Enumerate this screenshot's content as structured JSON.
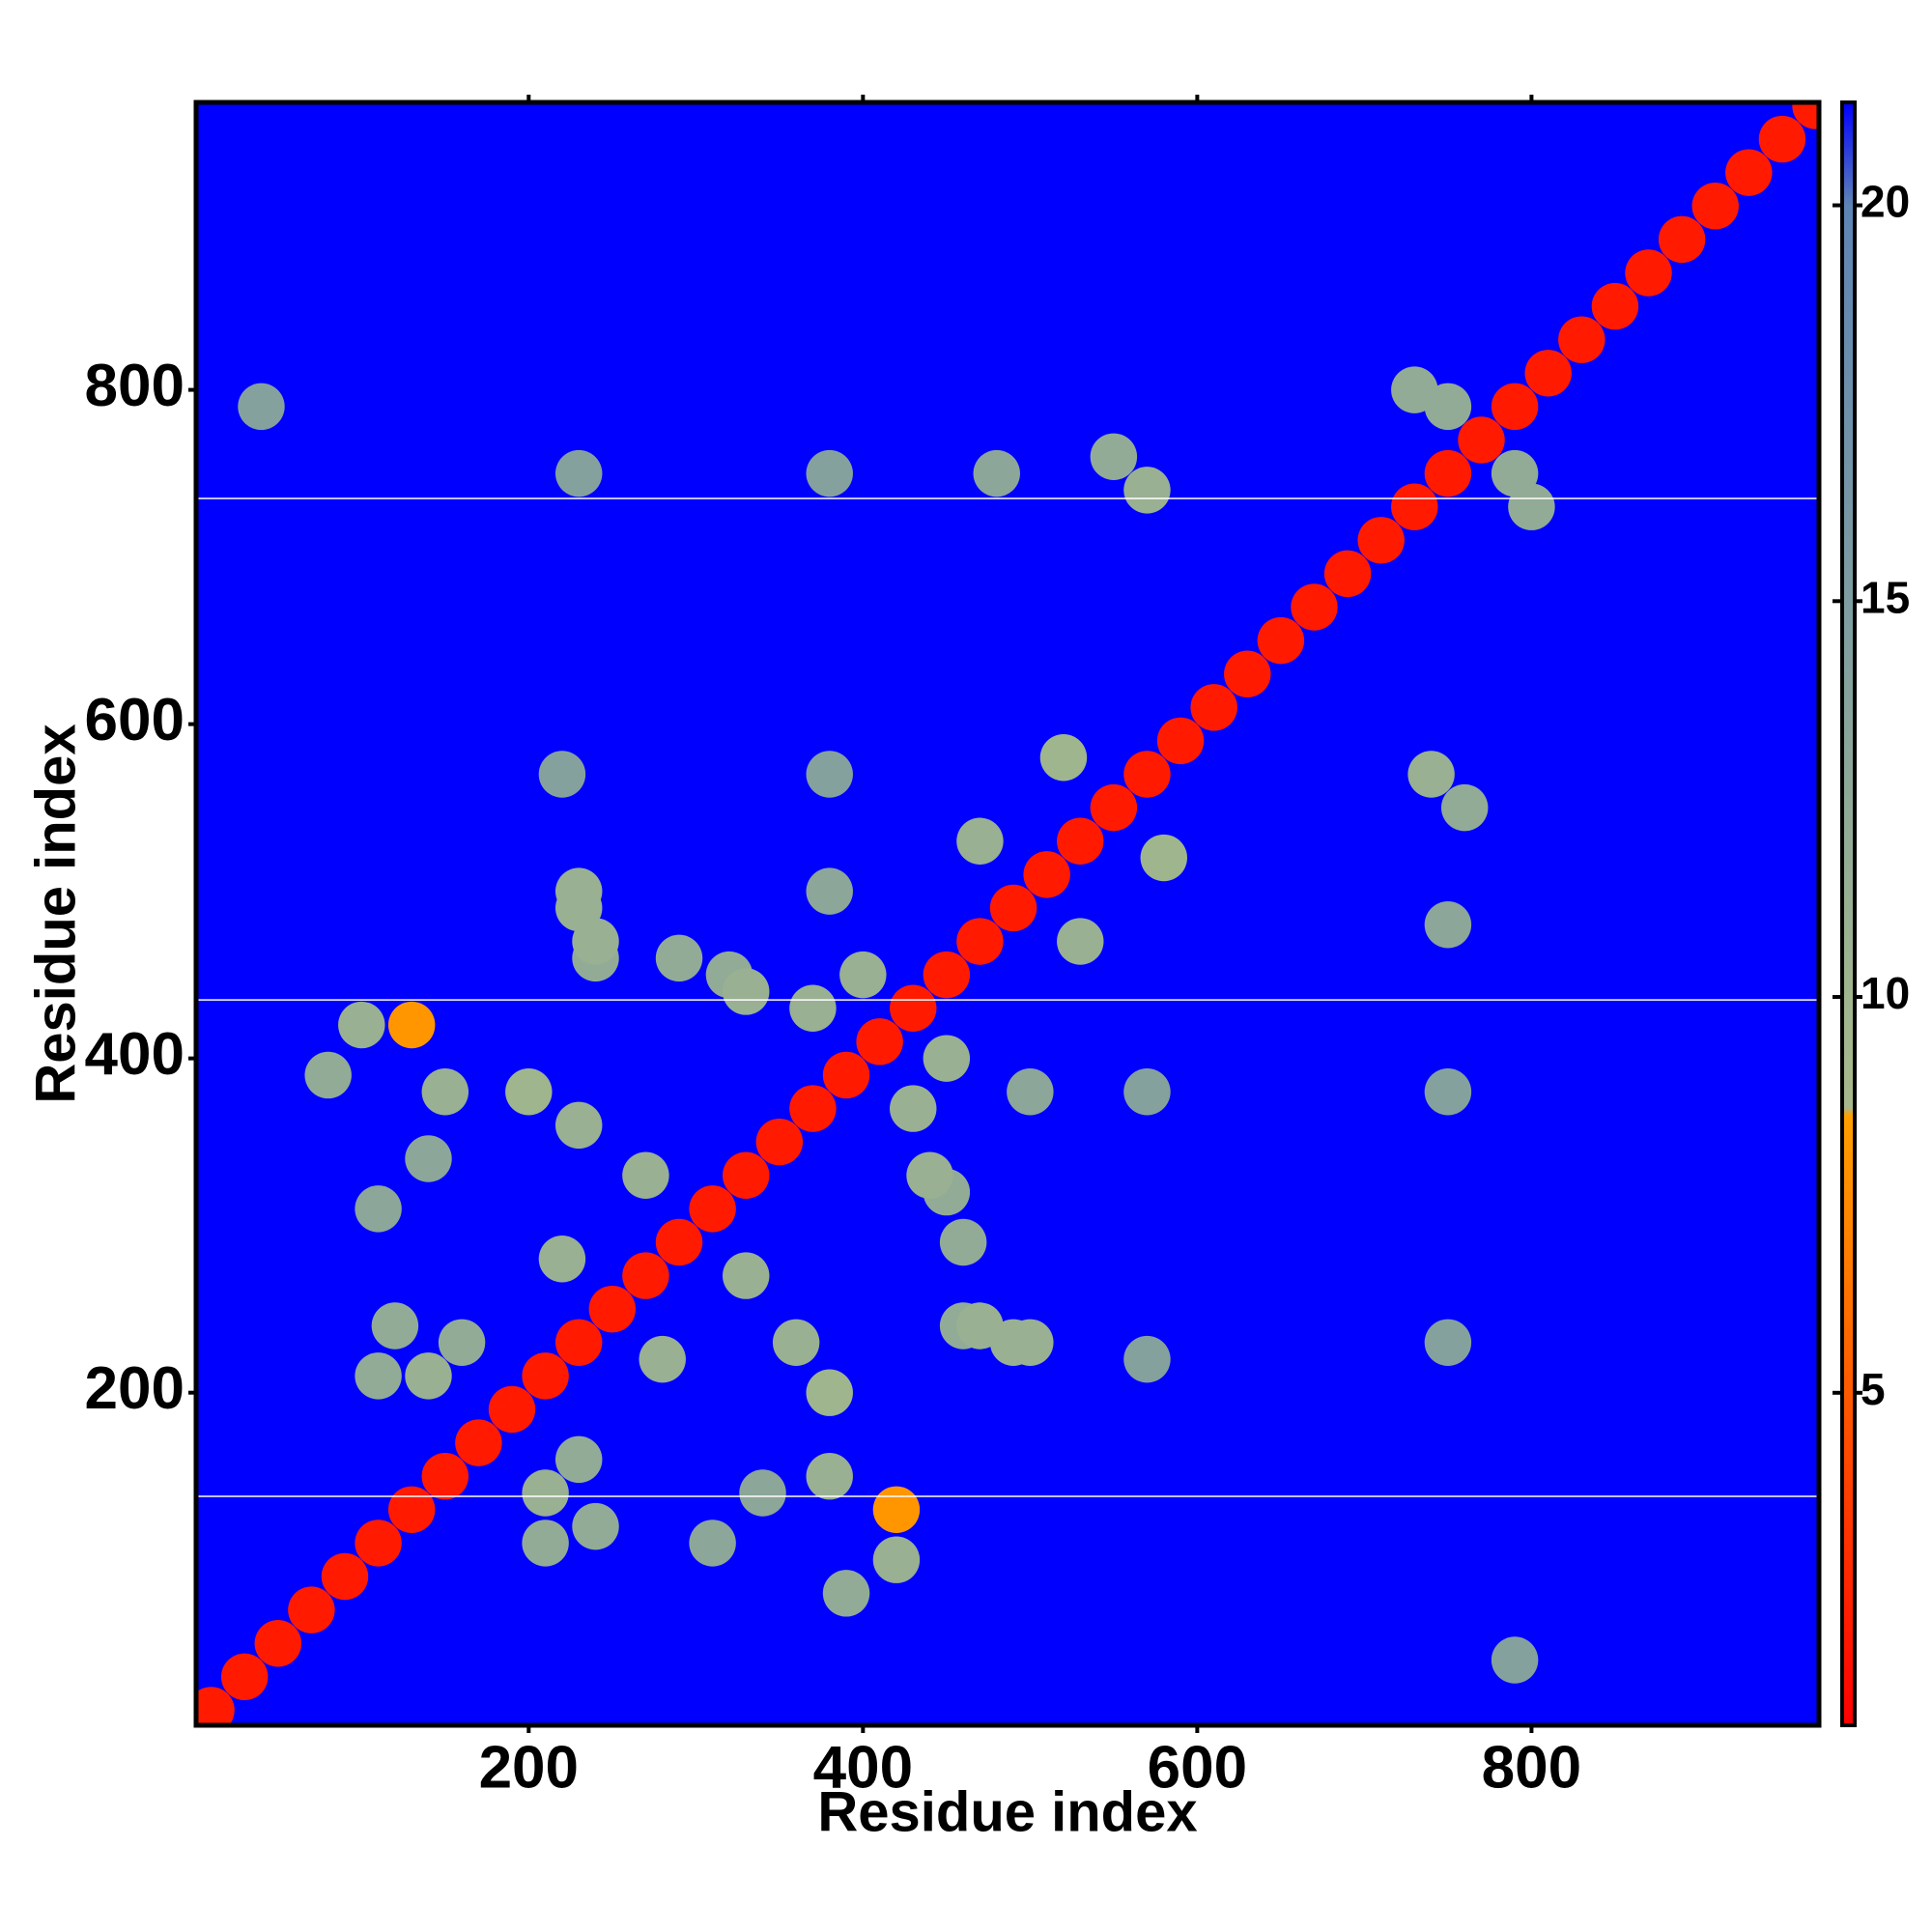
{
  "chart_data": {
    "type": "heatmap",
    "xlabel": "Residue index",
    "ylabel": "Residue index",
    "xlim": [
      1,
      972
    ],
    "ylim": [
      1,
      972
    ],
    "xticks": [
      200,
      400,
      600,
      800
    ],
    "yticks": [
      200,
      400,
      600,
      800
    ],
    "background_value": 21.3,
    "hlines": [
      735,
      435,
      138
    ],
    "x": [
      10,
      30,
      50,
      70,
      90,
      110,
      130,
      150,
      170,
      190,
      210,
      230,
      250,
      270,
      290,
      310,
      330,
      350,
      370,
      390,
      410,
      430,
      450,
      470,
      490,
      510,
      530,
      550,
      570,
      590,
      610,
      630,
      650,
      670,
      690,
      710,
      730,
      750,
      770,
      790,
      810,
      830,
      850,
      870,
      890,
      910,
      930,
      950,
      970,
      100,
      130,
      150,
      80,
      140,
      200,
      230,
      230,
      240,
      120,
      140,
      160,
      110,
      110,
      290,
      320,
      380,
      400,
      330,
      240,
      230,
      480,
      380,
      230,
      220,
      380,
      550,
      570,
      40,
      270,
      220,
      370,
      470,
      520,
      750,
      730,
      420,
      420,
      380,
      390,
      340,
      380,
      360,
      490,
      460,
      240,
      210,
      230,
      210,
      310,
      460,
      450,
      500,
      450,
      440,
      470,
      500,
      750,
      750,
      750,
      570,
      570,
      760,
      740,
      790,
      330,
      280,
      430,
      530,
      580,
      790,
      800
    ],
    "y": [
      10,
      30,
      50,
      70,
      90,
      110,
      130,
      150,
      170,
      190,
      210,
      230,
      250,
      270,
      290,
      310,
      330,
      350,
      370,
      390,
      410,
      430,
      450,
      470,
      490,
      510,
      530,
      550,
      570,
      590,
      610,
      630,
      650,
      670,
      690,
      710,
      730,
      750,
      770,
      790,
      810,
      830,
      850,
      870,
      890,
      910,
      930,
      950,
      970,
      420,
      420,
      380,
      390,
      340,
      380,
      360,
      490,
      460,
      240,
      210,
      230,
      210,
      310,
      460,
      450,
      500,
      450,
      440,
      470,
      500,
      750,
      750,
      750,
      570,
      570,
      760,
      740,
      790,
      330,
      280,
      430,
      530,
      580,
      790,
      800,
      100,
      130,
      150,
      80,
      140,
      200,
      230,
      230,
      240,
      120,
      140,
      160,
      110,
      110,
      290,
      320,
      380,
      400,
      330,
      240,
      230,
      480,
      380,
      230,
      220,
      380,
      550,
      570,
      40,
      270,
      220,
      370,
      470,
      520,
      750,
      730
    ],
    "values": [
      2,
      2,
      2,
      2,
      2,
      2,
      2,
      2,
      2,
      2,
      2,
      2,
      2,
      2,
      2,
      2,
      2,
      2,
      2,
      2,
      2,
      2,
      2,
      2,
      2,
      2,
      2,
      2,
      2,
      2,
      2,
      2,
      2,
      2,
      2,
      2,
      2,
      2,
      2,
      2,
      2,
      2,
      2,
      2,
      2,
      2,
      2,
      2,
      2,
      11,
      8,
      11,
      12,
      13,
      10,
      11,
      11,
      12,
      12,
      11,
      12,
      12,
      13,
      12,
      12,
      13,
      11,
      11,
      11,
      11,
      13,
      14,
      14,
      14,
      14,
      12,
      11,
      14,
      11,
      11,
      11,
      11,
      10,
      12,
      12,
      11,
      8,
      11,
      12,
      13,
      10,
      11,
      11,
      12,
      12,
      11,
      12,
      12,
      13,
      12,
      12,
      13,
      11,
      11,
      11,
      11,
      13,
      14,
      14,
      14,
      14,
      12,
      11,
      14,
      11,
      11,
      11,
      11,
      10,
      12,
      12
    ],
    "clim": [
      0.8,
      21.3
    ],
    "cticks": [
      5,
      10,
      15,
      20
    ],
    "colorscale": {
      "values": [
        0.8,
        5,
        8.5,
        8.6,
        10,
        20,
        21.3
      ],
      "colors": [
        "#ff0000",
        "#ff5a00",
        "#ffa000",
        "#a8b88c",
        "#9fb58e",
        "#5e84b4",
        "#0000ff"
      ]
    }
  }
}
